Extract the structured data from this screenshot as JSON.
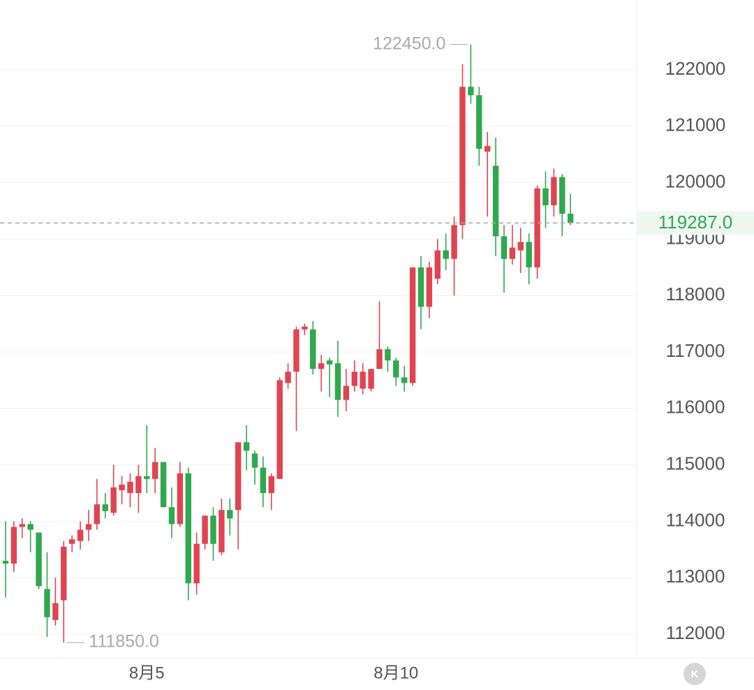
{
  "chart_data": {
    "type": "candlestick",
    "x": [
      0,
      1,
      2,
      3,
      4,
      5,
      6,
      7,
      8,
      9,
      10,
      11,
      12,
      13,
      14,
      15,
      16,
      17,
      18,
      19,
      20,
      21,
      22,
      23,
      24,
      25,
      26,
      27,
      28,
      29,
      30,
      31,
      32,
      33,
      34,
      35,
      36,
      37,
      38,
      39,
      40,
      41,
      42,
      43,
      44,
      45,
      46,
      47,
      48,
      49,
      50,
      51,
      52,
      53,
      54,
      55,
      56,
      57,
      58,
      59,
      60,
      61,
      62,
      63,
      64,
      65,
      66,
      67,
      68
    ],
    "open": [
      113300,
      113250,
      113900,
      113950,
      113800,
      112800,
      112250,
      112600,
      113600,
      113650,
      113850,
      113950,
      114300,
      114150,
      114550,
      114500,
      114500,
      114800,
      114750,
      115050,
      114250,
      113950,
      114850,
      112900,
      113600,
      114100,
      113450,
      114200,
      114200,
      115400,
      115200,
      114950,
      114500,
      114750,
      116450,
      116650,
      117400,
      117400,
      116700,
      116850,
      116800,
      116150,
      116400,
      116350,
      116350,
      116700,
      117050,
      116850,
      116550,
      116450,
      118500,
      117800,
      118300,
      118800,
      118650,
      119250,
      121700,
      121550,
      120550,
      120300,
      119050,
      118650,
      118800,
      118950,
      118500,
      119900,
      119600,
      120100,
      119450
    ],
    "high": [
      114000,
      114000,
      114050,
      114000,
      113800,
      113450,
      113000,
      113650,
      113750,
      114000,
      114200,
      114750,
      114500,
      115000,
      114800,
      114850,
      115000,
      115700,
      115300,
      115050,
      114600,
      115050,
      114950,
      113800,
      114100,
      114250,
      114400,
      114400,
      115400,
      115700,
      115250,
      115150,
      114850,
      116550,
      116800,
      117450,
      117500,
      117550,
      116950,
      116900,
      117200,
      116700,
      116850,
      116800,
      116700,
      117900,
      117100,
      116900,
      116750,
      118500,
      118700,
      118600,
      119000,
      119100,
      119400,
      122100,
      122450,
      121700,
      120900,
      120800,
      119250,
      119250,
      119200,
      119100,
      119950,
      120200,
      120250,
      120150,
      119800
    ],
    "low": [
      112650,
      113100,
      113700,
      113450,
      112800,
      111950,
      112150,
      111850,
      113450,
      113500,
      113650,
      113850,
      114050,
      114100,
      114300,
      114250,
      114150,
      114500,
      114500,
      114250,
      113700,
      113900,
      112600,
      112700,
      113500,
      113300,
      113400,
      113750,
      113500,
      114900,
      114650,
      114250,
      114200,
      114750,
      116350,
      115600,
      117300,
      116600,
      116300,
      116200,
      115850,
      115950,
      116300,
      116250,
      116300,
      116700,
      116650,
      116400,
      116300,
      116400,
      117400,
      117600,
      118200,
      118450,
      118000,
      119000,
      121400,
      120300,
      119400,
      118700,
      118050,
      118550,
      118400,
      118200,
      118300,
      119200,
      119400,
      119050,
      119250
    ],
    "close": [
      113250,
      113900,
      113950,
      113850,
      112850,
      112300,
      112550,
      113550,
      113680,
      113850,
      113950,
      114300,
      114180,
      114600,
      114650,
      114700,
      114800,
      114750,
      115050,
      114250,
      113950,
      114850,
      112900,
      113600,
      114100,
      113600,
      114200,
      114050,
      115400,
      115250,
      114950,
      114500,
      114800,
      116500,
      116650,
      117400,
      117450,
      116700,
      116800,
      116780,
      116150,
      116400,
      116650,
      116650,
      116700,
      117050,
      116850,
      116550,
      116450,
      118500,
      117800,
      118500,
      118800,
      118650,
      119250,
      121700,
      121550,
      120600,
      120650,
      119050,
      118650,
      118850,
      118950,
      118500,
      119900,
      119600,
      120100,
      119450,
      119287
    ],
    "up_color": "#e04452",
    "down_color": "#2fa84f",
    "xlim": [
      -0.67,
      75.97
    ],
    "xticks": [
      {
        "value": 17,
        "label": "8月5"
      },
      {
        "value": 47,
        "label": "8月10"
      }
    ],
    "ylim": [
      111579,
      123238
    ],
    "yticks": [
      112000,
      113000,
      114000,
      115000,
      116000,
      117000,
      118000,
      119000,
      120000,
      121000,
      122000
    ],
    "grid": true,
    "annotations": [
      {
        "value": 122450,
        "label": "122450.0",
        "x": 56
      },
      {
        "value": 111850,
        "label": "111850.0",
        "x": 7
      }
    ],
    "last_price": {
      "value": 119287,
      "label": "119287.0",
      "color": "#2fa84f"
    },
    "corner_button": "K"
  }
}
